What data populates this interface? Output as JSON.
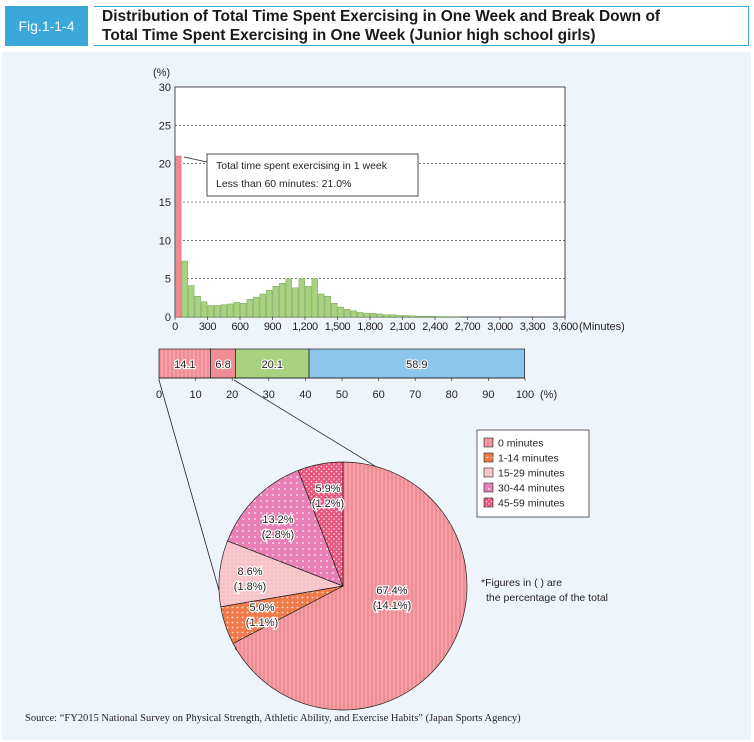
{
  "figure": {
    "tag": "Fig.1-1-4",
    "title_line1": "Distribution of Total Time Spent Exercising in One Week and Break Down of",
    "title_line2": "Total Time Spent Exercising in One Week (Junior high school girls)",
    "source": "Source: “FY2015 National Survey on Physical Strength, Athletic Ability, and Exercise Habits” (Japan Sports Agency)",
    "annotation_line1": "Total time spent exercising in 1 week",
    "annotation_line2": "Less than 60 minutes: 21.0%",
    "note_line1": "*Figures in ( ) are",
    "note_line2": "the percentage of the total",
    "colors": {
      "accent": "#3aa8d8",
      "histogram_first": "#ef8a90",
      "histogram_rest": "#a8d27f",
      "bar_pink": "#f08c93",
      "bar_green": "#a8d27f",
      "bar_blue": "#8cc6ec",
      "pie_0": "#f08c93",
      "pie_1_14": "#ef7a4a",
      "pie_15_29": "#f7c3c8",
      "pie_30_44": "#e980b5",
      "pie_45_59": "#e7557c"
    }
  },
  "chart_data": [
    {
      "type": "bar",
      "subtype": "histogram",
      "unit_label": "(%)",
      "x_unit_label": "(Minutes)",
      "ylim": [
        0,
        30
      ],
      "yticks": [
        0,
        5,
        10,
        15,
        20,
        25,
        30
      ],
      "xlim": [
        0,
        3600
      ],
      "xticks": [
        "0",
        "300",
        "600",
        "900",
        "1,200",
        "1,500",
        "1,800",
        "2,100",
        "2,400",
        "2,700",
        "3,000",
        "3,300",
        "3,600"
      ],
      "grid": "horizontal dashed",
      "bin_width_minutes": 60,
      "values": [
        21.0,
        7.3,
        4.1,
        2.7,
        2.0,
        1.5,
        1.5,
        1.6,
        1.7,
        1.9,
        1.8,
        2.3,
        2.6,
        3.0,
        3.5,
        4.0,
        4.4,
        5.0,
        3.8,
        5.0,
        4.0,
        5.0,
        3.0,
        2.7,
        1.8,
        1.3,
        1.0,
        0.8,
        0.6,
        0.5,
        0.5,
        0.4,
        0.3,
        0.3,
        0.2,
        0.2,
        0.15,
        0.1,
        0.1,
        0.1,
        0.05,
        0.05,
        0.05,
        0.05
      ]
    },
    {
      "type": "bar",
      "subtype": "100% stacked horizontal",
      "x_unit_label": "(%)",
      "xlim": [
        0,
        100
      ],
      "xticks": [
        "0",
        "10",
        "20",
        "30",
        "40",
        "50",
        "60",
        "70",
        "80",
        "90",
        "100"
      ],
      "segments": [
        {
          "value": 14.1,
          "label": "14.1"
        },
        {
          "value": 6.8,
          "label": "6.8"
        },
        {
          "value": 20.1,
          "label": "20.1"
        },
        {
          "value": 58.9,
          "label": "58.9"
        }
      ]
    },
    {
      "type": "pie",
      "legend": [
        "0 minutes",
        "1-14 minutes",
        "15-29 minutes",
        "30-44 minutes",
        "45-59 minutes"
      ],
      "legend_position": "top-right",
      "slices": [
        {
          "name": "0 minutes",
          "value": 67.4,
          "label": "67.4%",
          "sub_label": "(14.1%)"
        },
        {
          "name": "1-14 minutes",
          "value": 5.0,
          "label": "5.0%",
          "sub_label": "(1.1%)"
        },
        {
          "name": "15-29 minutes",
          "value": 8.6,
          "label": "8.6%",
          "sub_label": "(1.8%)"
        },
        {
          "name": "30-44 minutes",
          "value": 13.2,
          "label": "13.2%",
          "sub_label": "(2.8%)"
        },
        {
          "name": "45-59 minutes",
          "value": 5.9,
          "label": "5.9%",
          "sub_label": "(1.2%)"
        }
      ]
    }
  ]
}
